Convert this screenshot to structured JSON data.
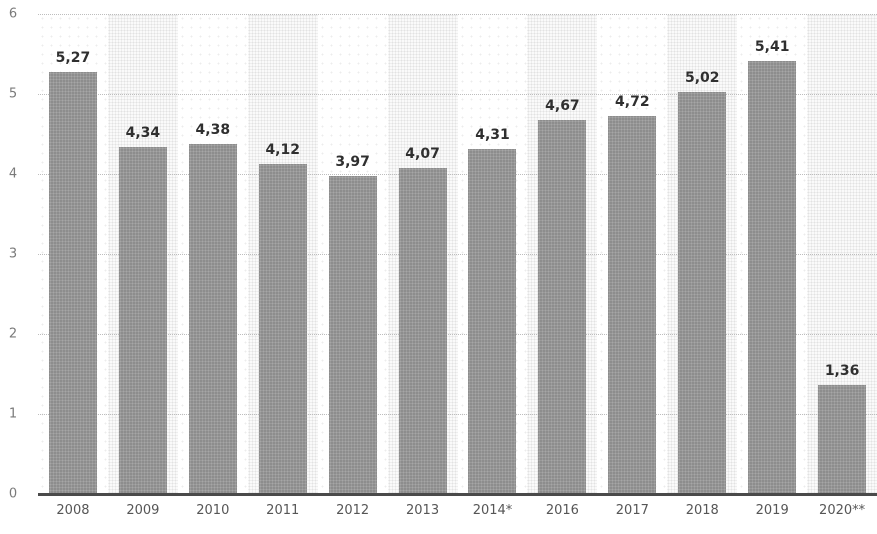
{
  "chart_data": {
    "type": "bar",
    "title": "",
    "xlabel": "",
    "ylabel": "",
    "categories": [
      "2008",
      "2009",
      "2010",
      "2011",
      "2012",
      "2013",
      "2014*",
      "2016",
      "2017",
      "2018",
      "2019",
      "2020**"
    ],
    "values": [
      5.27,
      4.34,
      4.38,
      4.12,
      3.97,
      4.07,
      4.31,
      4.67,
      4.72,
      5.02,
      5.41,
      1.36
    ],
    "value_labels": [
      "5,27",
      "4,34",
      "4,38",
      "4,12",
      "3,97",
      "4,07",
      "4,31",
      "4,67",
      "4,72",
      "5,02",
      "5,41",
      "1,36"
    ],
    "ylim": [
      0,
      6
    ],
    "yticks": [
      0,
      1,
      2,
      3,
      4,
      5,
      6
    ],
    "grid": "horizontal-dotted",
    "legend": "none",
    "plot_background": "alternating-vertical-bands",
    "bar_color": "#8d8d8d",
    "band_color": "#f0f0f0",
    "gridline_color": "#bdbdbd",
    "axis_line_color": "#4a4a4a",
    "value_label_color": "#2f2f2f",
    "tick_label_color": "#6e6e6e"
  }
}
